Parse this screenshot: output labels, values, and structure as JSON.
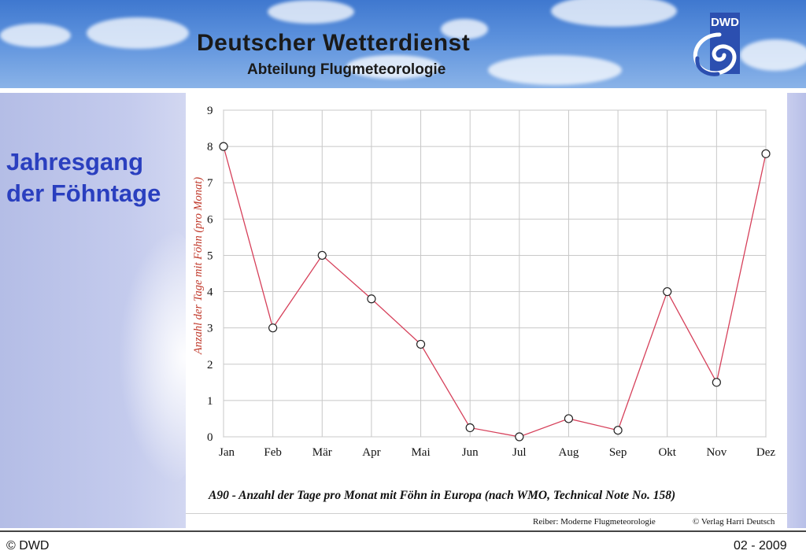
{
  "header": {
    "title": "Deutscher Wetterdienst",
    "subtitle": "Abteilung Flugmeteorologie",
    "logo_text": "DWD"
  },
  "slide": {
    "title_line1": "Jahresgang",
    "title_line2": "der Föhntage"
  },
  "chart_data": {
    "type": "line",
    "title": "",
    "xlabel": "",
    "ylabel": "Anzahl der Tage mit Föhn (pro Monat)",
    "categories": [
      "Jan",
      "Feb",
      "Mär",
      "Apr",
      "Mai",
      "Jun",
      "Jul",
      "Aug",
      "Sep",
      "Okt",
      "Nov",
      "Dez"
    ],
    "series": [
      {
        "name": "Föhntage",
        "values": [
          8.0,
          3.0,
          5.0,
          3.8,
          2.55,
          0.25,
          0.0,
          0.5,
          0.18,
          4.0,
          1.5,
          7.8
        ]
      }
    ],
    "yticks": [
      "0",
      "1",
      "2",
      "3",
      "4",
      "5",
      "6",
      "7",
      "8",
      "9"
    ],
    "ylim": [
      0,
      9
    ],
    "grid": true,
    "line_color": "#d6405a",
    "ylabel_color": "#c0392b"
  },
  "caption": "A90 - Anzahl der Tage pro Monat mit Föhn in Europa (nach WMO, Technical Note No. 158)",
  "source": {
    "left": "Reiber: Moderne Flugmeteorologie",
    "right": "© Verlag Harri Deutsch"
  },
  "footer": {
    "left": "© DWD",
    "right": "02 - 2009"
  }
}
